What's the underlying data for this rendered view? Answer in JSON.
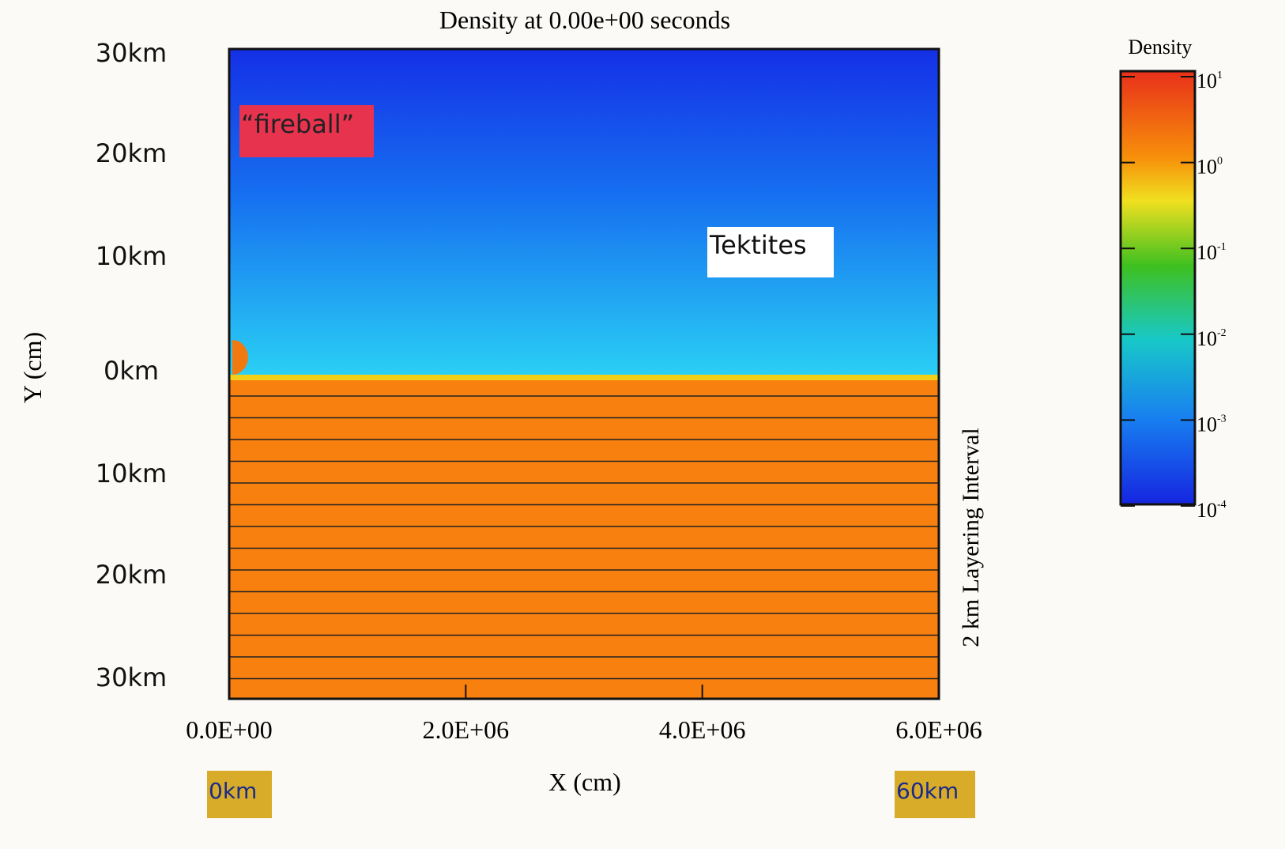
{
  "title": "Density at 0.00e+00 seconds",
  "y_axis": {
    "title": "Y (cm)",
    "labels": [
      "30km",
      "20km",
      "10km",
      "0km",
      "10km",
      "20km",
      "30km"
    ]
  },
  "x_axis": {
    "title": "X (cm)",
    "ticks": [
      "0.0E+00",
      "2.0E+06",
      "4.0E+06",
      "6.0E+06"
    ],
    "km_labels": [
      "0km",
      "60km"
    ]
  },
  "annotations": {
    "fireball": "“fireball”",
    "tektites": "Tektites",
    "layering": "2 km Layering Interval"
  },
  "colorbar": {
    "title": "Density",
    "ticks": [
      {
        "base": "10",
        "exp": "1"
      },
      {
        "base": "10",
        "exp": "0"
      },
      {
        "base": "10",
        "exp": "-1"
      },
      {
        "base": "10",
        "exp": "-2"
      },
      {
        "base": "10",
        "exp": "-3"
      },
      {
        "base": "10",
        "exp": "-4"
      }
    ]
  }
}
